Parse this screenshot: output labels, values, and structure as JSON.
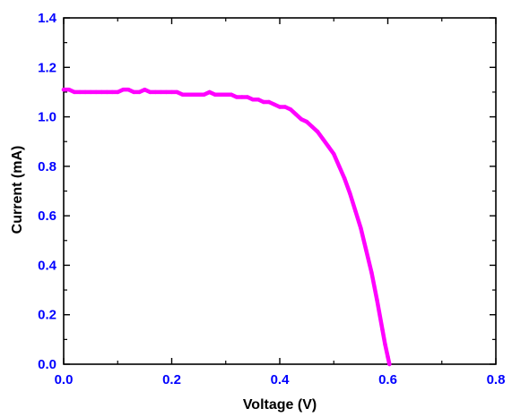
{
  "chart_data": {
    "type": "line",
    "title": "",
    "xlabel": "Voltage (V)",
    "ylabel": "Current (mA)",
    "xlim": [
      0.0,
      0.8
    ],
    "ylim": [
      0.0,
      1.4
    ],
    "x_ticks": [
      "0.0",
      "0.2",
      "0.4",
      "0.6",
      "0.8"
    ],
    "y_ticks": [
      "0.0",
      "0.2",
      "0.4",
      "0.6",
      "0.8",
      "1.0",
      "1.2",
      "1.4"
    ],
    "grid": false,
    "legend": "none",
    "series": [
      {
        "color": "#ff00ff",
        "x": [
          0.0,
          0.01,
          0.02,
          0.03,
          0.04,
          0.05,
          0.06,
          0.07,
          0.08,
          0.09,
          0.1,
          0.11,
          0.12,
          0.13,
          0.14,
          0.15,
          0.16,
          0.17,
          0.18,
          0.19,
          0.2,
          0.21,
          0.22,
          0.23,
          0.24,
          0.25,
          0.26,
          0.27,
          0.28,
          0.29,
          0.3,
          0.31,
          0.32,
          0.33,
          0.34,
          0.35,
          0.36,
          0.37,
          0.38,
          0.39,
          0.4,
          0.41,
          0.42,
          0.43,
          0.44,
          0.45,
          0.46,
          0.47,
          0.48,
          0.49,
          0.5,
          0.51,
          0.52,
          0.53,
          0.54,
          0.55,
          0.56,
          0.57,
          0.58,
          0.59,
          0.595,
          0.6,
          0.603
        ],
        "y": [
          1.11,
          1.11,
          1.1,
          1.1,
          1.1,
          1.1,
          1.1,
          1.1,
          1.1,
          1.1,
          1.1,
          1.11,
          1.11,
          1.1,
          1.1,
          1.11,
          1.1,
          1.1,
          1.1,
          1.1,
          1.1,
          1.1,
          1.09,
          1.09,
          1.09,
          1.09,
          1.09,
          1.1,
          1.09,
          1.09,
          1.09,
          1.09,
          1.08,
          1.08,
          1.08,
          1.07,
          1.07,
          1.06,
          1.06,
          1.05,
          1.04,
          1.04,
          1.03,
          1.01,
          0.99,
          0.98,
          0.96,
          0.94,
          0.91,
          0.88,
          0.85,
          0.8,
          0.75,
          0.69,
          0.62,
          0.55,
          0.46,
          0.37,
          0.26,
          0.14,
          0.08,
          0.03,
          0.0
        ]
      }
    ]
  },
  "colors": {
    "axis": "#000000",
    "tick_labels": "#0000ff",
    "series": "#ff00ff"
  }
}
